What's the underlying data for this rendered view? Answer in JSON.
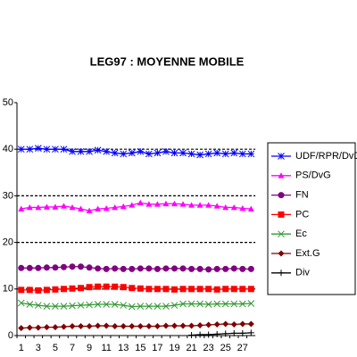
{
  "chart_data": {
    "type": "line",
    "title": "LEG97 : MOYENNE MOBILE",
    "categories": [
      1,
      null,
      3,
      null,
      5,
      null,
      7,
      null,
      9,
      null,
      11,
      null,
      13,
      null,
      15,
      null,
      17,
      null,
      19,
      null,
      21,
      null,
      23,
      null,
      25,
      null,
      27,
      null
    ],
    "ylim": [
      0,
      50
    ],
    "yticks": [
      0,
      10,
      20,
      30,
      40,
      50
    ],
    "grid": true,
    "series": [
      {
        "name": "UDF/RPR/DvD",
        "color": "#0000ff",
        "marker": "star",
        "values": [
          40,
          40,
          40.2,
          40,
          40,
          40,
          39.5,
          39.5,
          39.5,
          39.8,
          39.5,
          39.2,
          39,
          39.2,
          39.5,
          39,
          39.2,
          39.5,
          39.2,
          39.2,
          39,
          38.8,
          39,
          39.2,
          39,
          39.2,
          39,
          39
        ]
      },
      {
        "name": "PS/DvG",
        "color": "#ff00ff",
        "marker": "triangle",
        "values": [
          27.2,
          27.5,
          27.5,
          27.6,
          27.6,
          27.8,
          27.5,
          27.2,
          26.8,
          27.2,
          27.3,
          27.5,
          27.7,
          28,
          28.5,
          28.2,
          28.2,
          28.3,
          28.3,
          28.2,
          28,
          28,
          28,
          27.8,
          27.5,
          27.5,
          27.3,
          27.2
        ]
      },
      {
        "name": "FN",
        "color": "#800080",
        "marker": "circle",
        "values": [
          14.5,
          14.5,
          14.5,
          14.6,
          14.6,
          14.7,
          14.8,
          14.8,
          14.6,
          14.4,
          14.3,
          14.4,
          14.3,
          14.3,
          14.4,
          14.4,
          14.3,
          14.4,
          14.4,
          14.4,
          14.3,
          14.3,
          14.2,
          14.3,
          14.3,
          14.4,
          14.3,
          14.3
        ]
      },
      {
        "name": "PC",
        "color": "#ff0000",
        "marker": "square",
        "values": [
          9.8,
          9.8,
          9.7,
          9.8,
          9.9,
          10,
          10.1,
          10.2,
          10.4,
          10.5,
          10.5,
          10.5,
          10.4,
          10.2,
          10.1,
          10,
          10,
          10,
          9.9,
          10,
          10,
          10,
          10,
          9.9,
          10,
          10,
          10,
          10
        ]
      },
      {
        "name": "Ec",
        "color": "#339933",
        "marker": "x",
        "values": [
          7,
          6.7,
          6.5,
          6.3,
          6.3,
          6.3,
          6.4,
          6.5,
          6.6,
          6.7,
          6.7,
          6.7,
          6.5,
          6.2,
          6.3,
          6.3,
          6.3,
          6.3,
          6.5,
          6.8,
          6.8,
          6.8,
          6.7,
          6.8,
          6.8,
          6.8,
          6.8,
          6.9
        ]
      },
      {
        "name": "Ext.G",
        "color": "#800000",
        "marker": "diamond",
        "values": [
          1.6,
          1.7,
          1.7,
          1.8,
          1.8,
          1.9,
          2,
          2,
          2,
          2.1,
          2.1,
          2,
          2,
          2,
          2,
          2,
          2,
          2.1,
          2.1,
          2.1,
          2.1,
          2.2,
          2.3,
          2.4,
          2.5,
          2.4,
          2.5,
          2.5
        ]
      },
      {
        "name": "Div",
        "color": "#000000",
        "marker": "plus",
        "values": [
          null,
          null,
          null,
          null,
          null,
          null,
          null,
          null,
          null,
          null,
          null,
          null,
          null,
          null,
          null,
          null,
          null,
          null,
          null,
          null,
          0.1,
          0.2,
          0.2,
          0.3,
          0.4,
          0.5,
          0.5,
          0.6
        ]
      }
    ]
  }
}
